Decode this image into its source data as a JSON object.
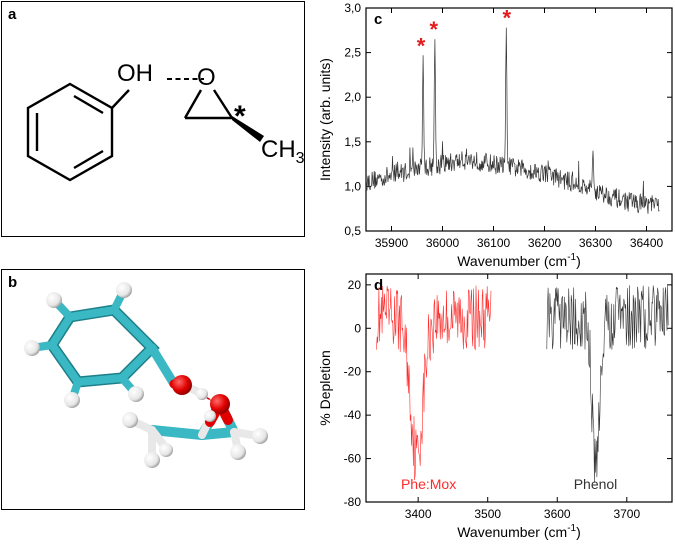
{
  "panels": {
    "a": {
      "label": "a",
      "oh": "OH",
      "o": "O",
      "star": "*",
      "ch3_base": "CH",
      "ch3_sub": "3"
    },
    "b": {
      "label": "b"
    }
  },
  "colors": {
    "spectrum_black": "#333333",
    "spectrum_red": "#ff2a2a",
    "marker_red": "#e41a1c",
    "carbon": "#3ab8c3",
    "oxygen": "#e00000",
    "hydrogen": "#f2f2f2"
  },
  "chart_data": [
    {
      "panel": "c",
      "type": "line",
      "xlabel_main": "Wavenumber (cm",
      "xlabel_sup": "-1",
      "xlabel_end": ")",
      "ylabel": "Intensity (arb. units)",
      "xlim": [
        35850,
        36450
      ],
      "ylim": [
        0.5,
        3.0
      ],
      "xticks": [
        35900,
        36000,
        36100,
        36200,
        36300,
        36400
      ],
      "yticks": [
        "0,5",
        "1,0",
        "1,5",
        "2,0",
        "2,5",
        "3,0"
      ],
      "ytick_values": [
        0.5,
        1.0,
        1.5,
        2.0,
        2.5,
        3.0
      ],
      "series": [
        {
          "color": "#333333",
          "x_range": [
            35850,
            36425
          ],
          "baseline": [
            [
              35850,
              1.05
            ],
            [
              35950,
              1.2
            ],
            [
              36000,
              1.25
            ],
            [
              36050,
              1.3
            ],
            [
              36100,
              1.25
            ],
            [
              36150,
              1.2
            ],
            [
              36200,
              1.15
            ],
            [
              36250,
              1.05
            ],
            [
              36300,
              0.95
            ],
            [
              36350,
              0.85
            ],
            [
              36400,
              0.8
            ],
            [
              36425,
              0.78
            ]
          ],
          "peaks": [
            {
              "x": 35962,
              "y": 2.47
            },
            {
              "x": 35985,
              "y": 2.65
            },
            {
              "x": 36125,
              "y": 2.78
            },
            {
              "x": 36295,
              "y": 1.4
            }
          ]
        }
      ],
      "markers": [
        {
          "x": 35958,
          "label": "*"
        },
        {
          "x": 35983,
          "label": "*"
        },
        {
          "x": 36126,
          "label": "*"
        }
      ]
    },
    {
      "panel": "d",
      "type": "line",
      "xlabel_main": "Wavenumber (cm",
      "xlabel_sup": "-1",
      "xlabel_end": ")",
      "ylabel": "% Depletion",
      "xlim": [
        3325,
        3765
      ],
      "ylim": [
        -80,
        25
      ],
      "xticks": [
        3400,
        3500,
        3600,
        3700
      ],
      "yticks": [
        "20",
        "0",
        "-20",
        "-40",
        "-60",
        "-80"
      ],
      "ytick_values": [
        20,
        0,
        -20,
        -40,
        -60,
        -80
      ],
      "series": [
        {
          "name": "Phe:Mox",
          "color": "#ff2a2a",
          "x_range": [
            3340,
            3505
          ],
          "dip_center": 3398,
          "dip_min": -64,
          "dip_width": 9
        },
        {
          "name": "Phenol",
          "color": "#333333",
          "x_range": [
            3585,
            3760
          ],
          "dip_center": 3655,
          "dip_min": -70,
          "dip_width": 5
        }
      ],
      "legend": [
        {
          "text": "Phe:Mox",
          "color": "#ff2a2a",
          "x": 3415,
          "y": -74
        },
        {
          "text": "Phenol",
          "color": "#333333",
          "x": 3655,
          "y": -74
        }
      ]
    }
  ]
}
